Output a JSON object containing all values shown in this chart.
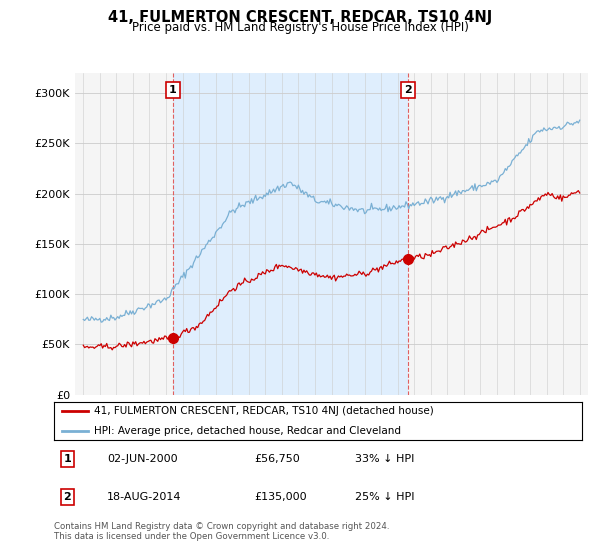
{
  "title": "41, FULMERTON CRESCENT, REDCAR, TS10 4NJ",
  "subtitle": "Price paid vs. HM Land Registry's House Price Index (HPI)",
  "legend_label_red": "41, FULMERTON CRESCENT, REDCAR, TS10 4NJ (detached house)",
  "legend_label_blue": "HPI: Average price, detached house, Redcar and Cleveland",
  "annotation1_date": "02-JUN-2000",
  "annotation1_price": "£56,750",
  "annotation1_pct": "33% ↓ HPI",
  "annotation1_year": 2000.42,
  "annotation1_value": 56750,
  "annotation2_date": "18-AUG-2014",
  "annotation2_price": "£135,000",
  "annotation2_pct": "25% ↓ HPI",
  "annotation2_year": 2014.63,
  "annotation2_value": 135000,
  "footer": "Contains HM Land Registry data © Crown copyright and database right 2024.\nThis data is licensed under the Open Government Licence v3.0.",
  "ylim": [
    0,
    320000
  ],
  "yticks": [
    0,
    50000,
    100000,
    150000,
    200000,
    250000,
    300000
  ],
  "background_color": "#ffffff",
  "plot_bg_color": "#f5f5f5",
  "shade_color": "#ddeeff",
  "red_color": "#cc0000",
  "blue_color": "#7ab0d4",
  "vline_color": "#e06060",
  "grid_color": "#cccccc"
}
